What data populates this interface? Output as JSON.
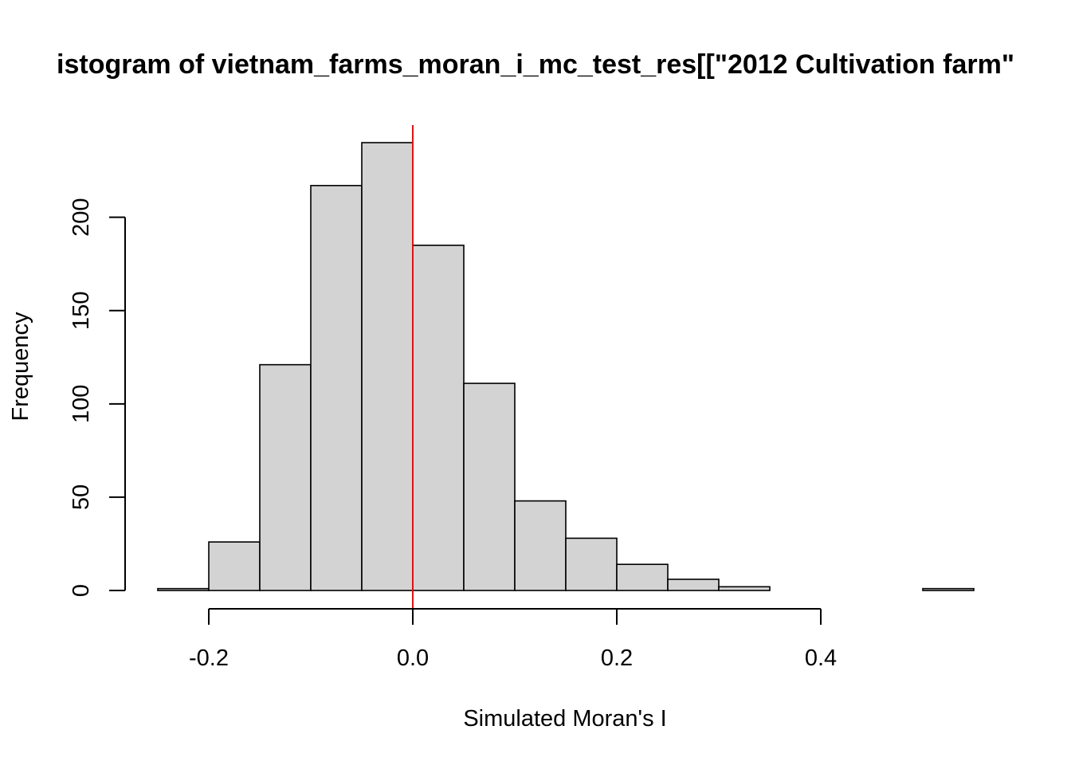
{
  "chart_data": {
    "type": "bar",
    "title": "istogram of vietnam_farms_moran_i_mc_test_res[[\"2012 Cultivation farm\"",
    "xlabel": "Simulated Moran's I",
    "ylabel": "Frequency",
    "bin_edges": [
      -0.25,
      -0.2,
      -0.15,
      -0.1,
      -0.05,
      0.0,
      0.05,
      0.1,
      0.15,
      0.2,
      0.25,
      0.3,
      0.35,
      0.4,
      0.45,
      0.5,
      0.55
    ],
    "values": [
      1,
      26,
      121,
      217,
      240,
      185,
      111,
      48,
      28,
      14,
      6,
      2,
      0,
      0,
      0,
      1
    ],
    "xlim": [
      -0.25,
      0.55
    ],
    "ylim": [
      0,
      240
    ],
    "x_ticks": [
      -0.2,
      0.0,
      0.2,
      0.4
    ],
    "x_tick_labels": [
      "-0.2",
      "0.0",
      "0.2",
      "0.4"
    ],
    "y_ticks": [
      0,
      50,
      100,
      150,
      200
    ],
    "y_tick_labels": [
      "0",
      "50",
      "100",
      "150",
      "200"
    ],
    "reference_line": {
      "x": 0.0,
      "color": "#ff0000"
    },
    "bar_fill": "#d3d3d3",
    "bar_stroke": "#000000",
    "grid": false
  }
}
